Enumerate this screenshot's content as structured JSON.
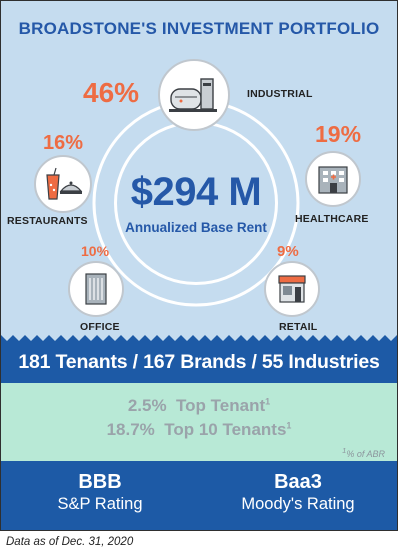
{
  "title": "BROADSTONE'S INVESTMENT PORTFOLIO",
  "center": {
    "value": "$294 M",
    "label": "Annualized Base Rent"
  },
  "segments": [
    {
      "name": "INDUSTRIAL",
      "percent": "46%",
      "icon": "industrial-icon"
    },
    {
      "name": "HEALTHCARE",
      "percent": "19%",
      "icon": "healthcare-icon"
    },
    {
      "name": "RESTAURANTS",
      "percent": "16%",
      "icon": "restaurant-icon"
    },
    {
      "name": "OFFICE",
      "percent": "10%",
      "icon": "office-icon"
    },
    {
      "name": "RETAIL",
      "percent": "9%",
      "icon": "retail-icon"
    }
  ],
  "stats": {
    "tenants_num": "181",
    "tenants_word": "Tenants",
    "brands_num": "167",
    "brands_word": "Brands",
    "industries_num": "55",
    "industries_word": "Industries",
    "sep": "/"
  },
  "concentration": {
    "top_tenant_value": "2.5%",
    "top_tenant_label": "Top Tenant",
    "top10_value": "18.7%",
    "top10_label": "Top 10 Tenants",
    "marker": "1",
    "footnote": "% of ABR"
  },
  "ratings": [
    {
      "value": "BBB",
      "label": "S&P Rating"
    },
    {
      "value": "Baa3",
      "label": "Moody's Rating"
    }
  ],
  "as_of": "Data as of Dec. 31, 2020",
  "colors": {
    "accent_blue": "#1d5aa6",
    "accent_orange": "#ee6c43",
    "sky": "#c5dcef",
    "mint": "#b8e9d6"
  }
}
